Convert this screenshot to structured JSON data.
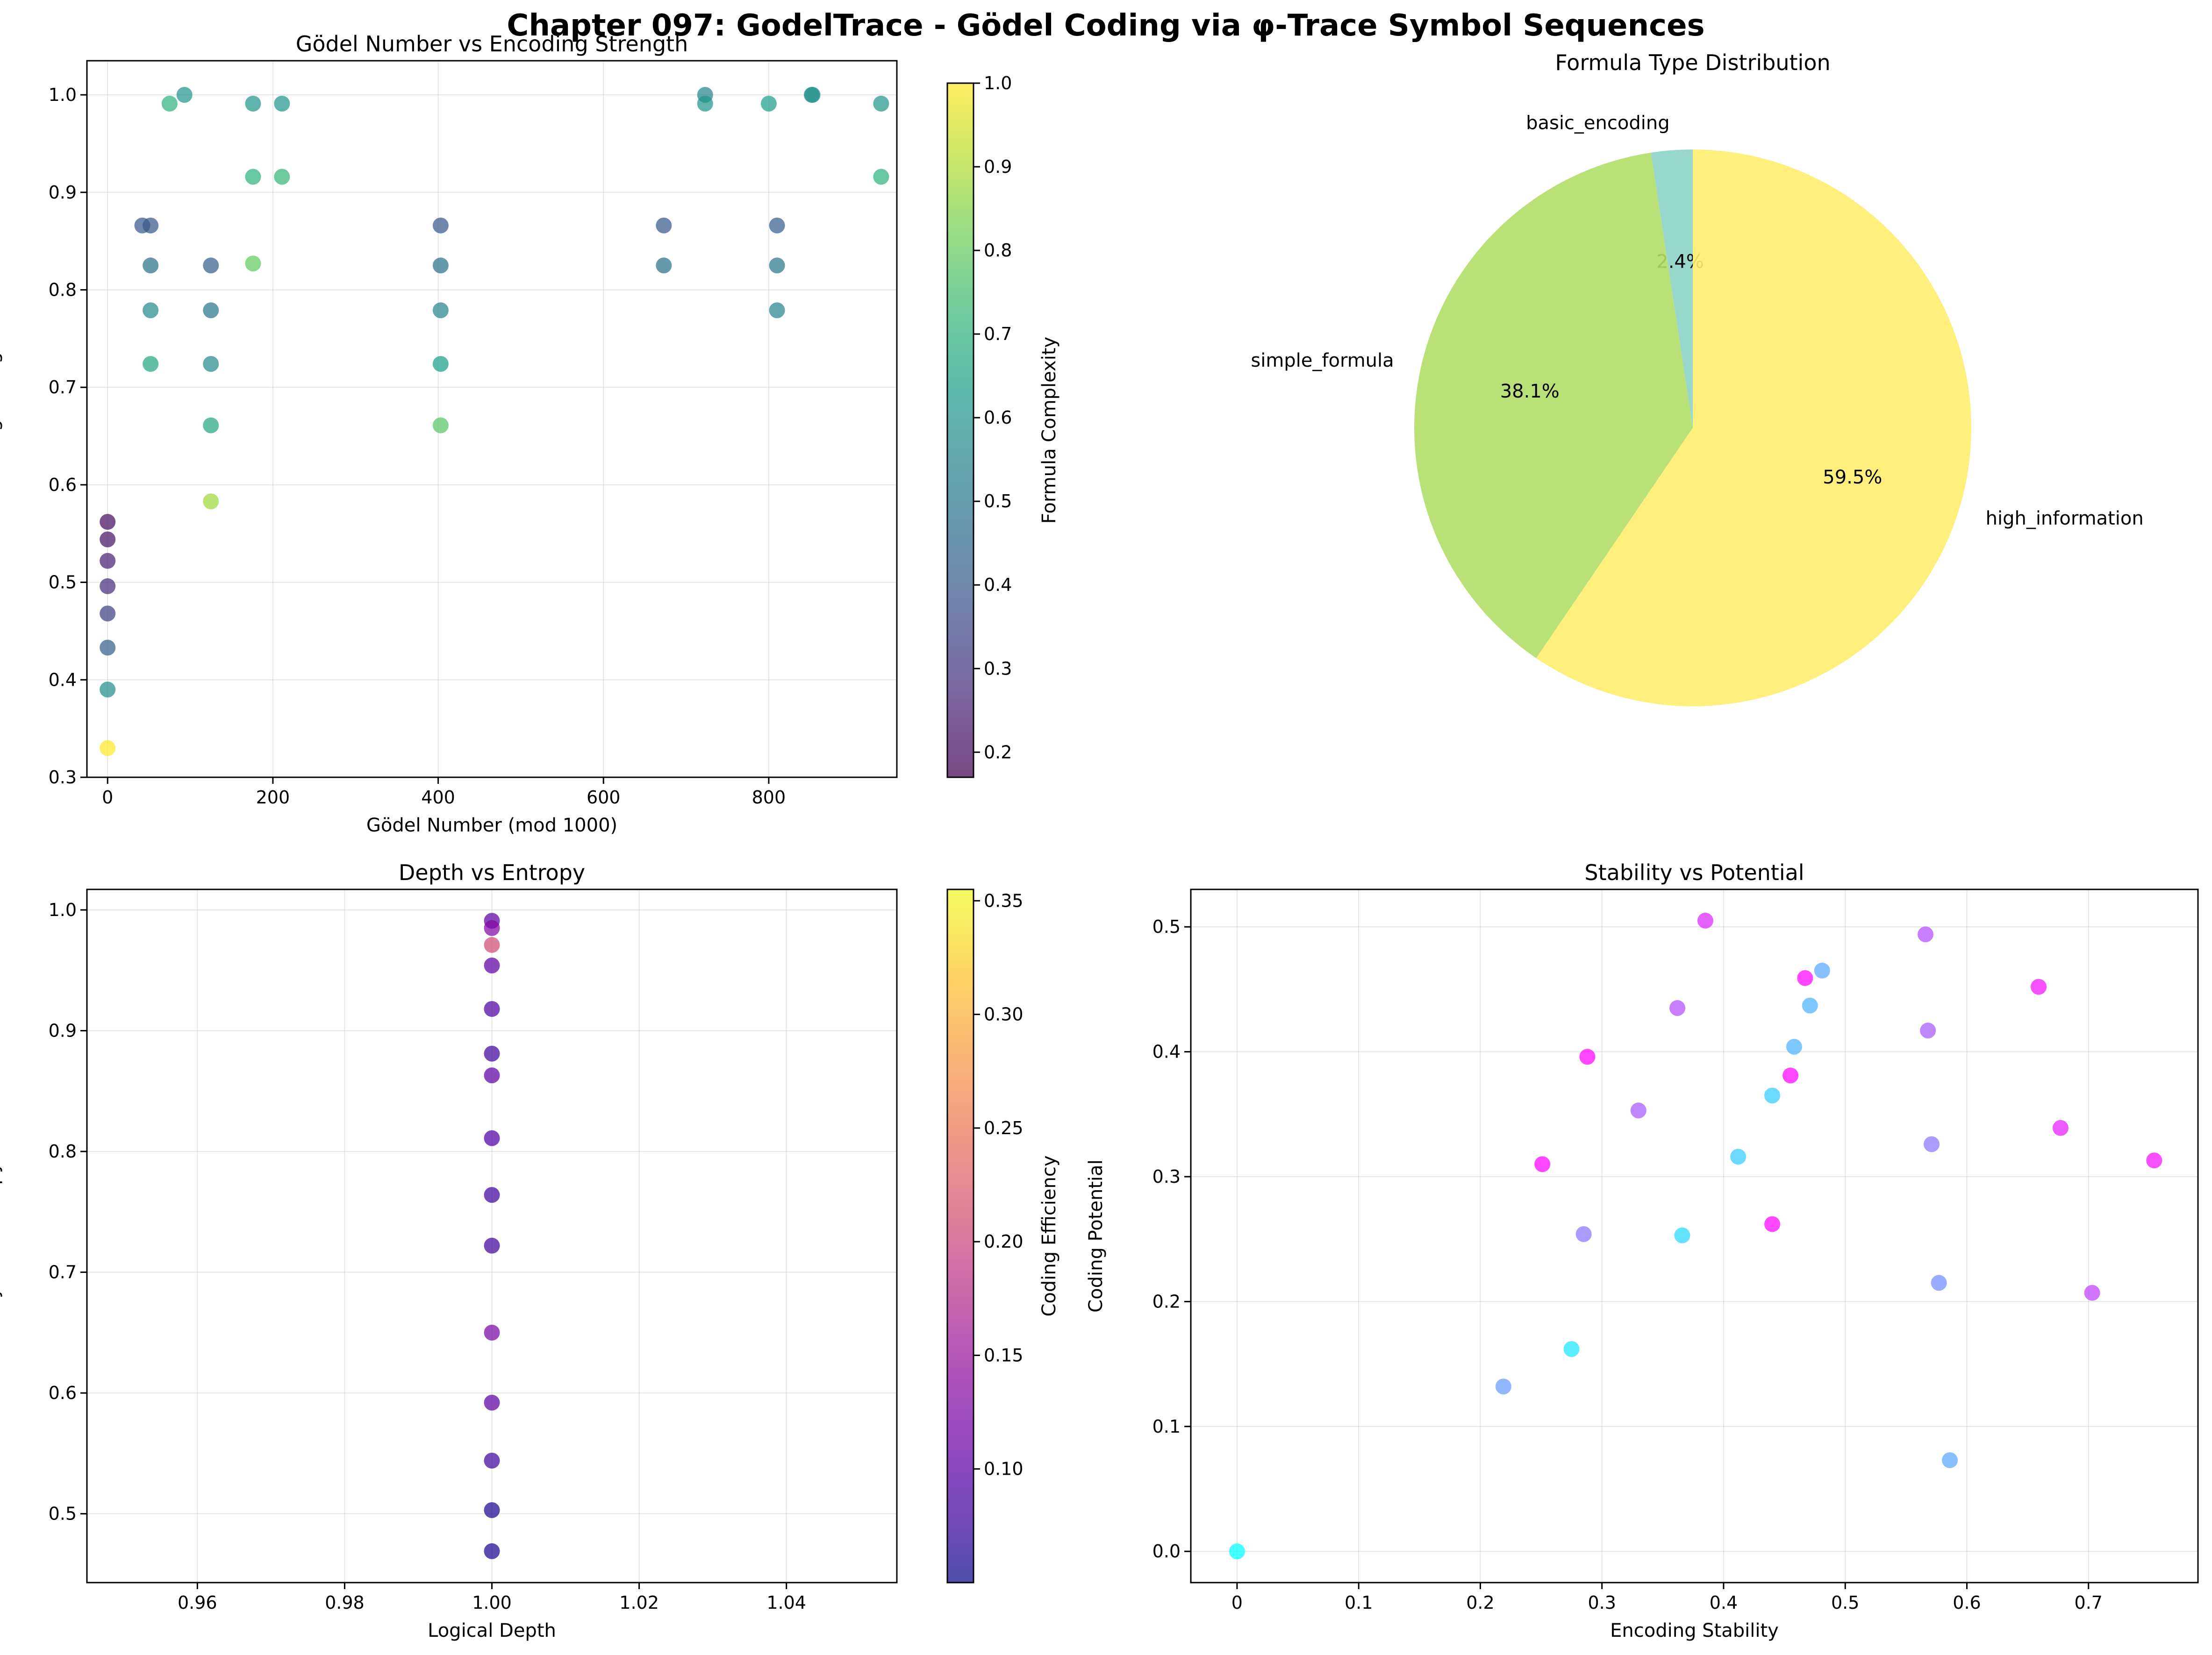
{
  "suptitle": "Chapter 097: GodelTrace - Gödel Coding via φ-Trace Symbol Sequences",
  "chart_data": [
    {
      "type": "scatter",
      "title": "Gödel Number vs Encoding Strength",
      "xlabel": "Gödel Number (mod 1000)",
      "ylabel": "Encoding Strength",
      "xlim": [
        -25,
        955
      ],
      "ylim": [
        0.3,
        1.035
      ],
      "xticks": [
        0,
        200,
        400,
        600,
        800
      ],
      "yticks": [
        0.3,
        0.4,
        0.5,
        0.6,
        0.7,
        0.8,
        0.9,
        1.0
      ],
      "colorbar": {
        "label": "Formula Complexity",
        "range": [
          0.17,
          1.0
        ],
        "ticks": [
          0.2,
          0.3,
          0.4,
          0.5,
          0.6,
          0.7,
          0.8,
          0.9,
          1.0
        ],
        "colormap": "viridis"
      },
      "grid": true,
      "points": [
        {
          "x": 0,
          "y": 0.562,
          "c": 0.2
        },
        {
          "x": 0,
          "y": 0.544,
          "c": 0.22
        },
        {
          "x": 0,
          "y": 0.522,
          "c": 0.25
        },
        {
          "x": 0,
          "y": 0.496,
          "c": 0.28
        },
        {
          "x": 0,
          "y": 0.468,
          "c": 0.33
        },
        {
          "x": 0,
          "y": 0.433,
          "c": 0.42
        },
        {
          "x": 0,
          "y": 0.39,
          "c": 0.58
        },
        {
          "x": 0,
          "y": 0.33,
          "c": 1.0
        },
        {
          "x": 42,
          "y": 0.866,
          "c": 0.4
        },
        {
          "x": 52,
          "y": 0.866,
          "c": 0.4
        },
        {
          "x": 52,
          "y": 0.825,
          "c": 0.48
        },
        {
          "x": 52,
          "y": 0.779,
          "c": 0.57
        },
        {
          "x": 52,
          "y": 0.724,
          "c": 0.66
        },
        {
          "x": 75,
          "y": 0.991,
          "c": 0.7
        },
        {
          "x": 93,
          "y": 1.0,
          "c": 0.6
        },
        {
          "x": 125,
          "y": 0.825,
          "c": 0.42
        },
        {
          "x": 125,
          "y": 0.779,
          "c": 0.5
        },
        {
          "x": 125,
          "y": 0.724,
          "c": 0.57
        },
        {
          "x": 125,
          "y": 0.661,
          "c": 0.66
        },
        {
          "x": 125,
          "y": 0.583,
          "c": 0.88
        },
        {
          "x": 176,
          "y": 0.991,
          "c": 0.6
        },
        {
          "x": 176,
          "y": 0.916,
          "c": 0.7
        },
        {
          "x": 176,
          "y": 0.827,
          "c": 0.8
        },
        {
          "x": 211,
          "y": 0.991,
          "c": 0.6
        },
        {
          "x": 211,
          "y": 0.916,
          "c": 0.72
        },
        {
          "x": 403,
          "y": 0.866,
          "c": 0.4
        },
        {
          "x": 403,
          "y": 0.825,
          "c": 0.48
        },
        {
          "x": 403,
          "y": 0.779,
          "c": 0.55
        },
        {
          "x": 403,
          "y": 0.724,
          "c": 0.63
        },
        {
          "x": 403,
          "y": 0.661,
          "c": 0.78
        },
        {
          "x": 673,
          "y": 0.866,
          "c": 0.4
        },
        {
          "x": 673,
          "y": 0.825,
          "c": 0.48
        },
        {
          "x": 723,
          "y": 1.0,
          "c": 0.55
        },
        {
          "x": 723,
          "y": 0.991,
          "c": 0.6
        },
        {
          "x": 800,
          "y": 0.991,
          "c": 0.63
        },
        {
          "x": 810,
          "y": 0.866,
          "c": 0.42
        },
        {
          "x": 810,
          "y": 0.825,
          "c": 0.5
        },
        {
          "x": 810,
          "y": 0.779,
          "c": 0.55
        },
        {
          "x": 852,
          "y": 1.0,
          "c": 0.55
        },
        {
          "x": 853,
          "y": 1.0,
          "c": 0.6
        },
        {
          "x": 936,
          "y": 0.991,
          "c": 0.6
        },
        {
          "x": 936,
          "y": 0.916,
          "c": 0.7
        }
      ]
    },
    {
      "type": "pie",
      "title": "Formula Type Distribution",
      "slices": [
        {
          "label": "basic_encoding",
          "value": 2.4,
          "pct": "2.4%",
          "color": "#8dd3c7"
        },
        {
          "label": "simple_formula",
          "value": 38.1,
          "pct": "38.1%",
          "color": "#b3de69"
        },
        {
          "label": "high_information",
          "value": 59.5,
          "pct": "59.5%",
          "color": "#ffed6f"
        }
      ]
    },
    {
      "type": "scatter",
      "title": "Depth vs Entropy",
      "xlabel": "Logical Depth",
      "ylabel": "Symbol Entropy",
      "xlim": [
        0.945,
        1.055
      ],
      "ylim": [
        0.443,
        1.017
      ],
      "xticks": [
        0.96,
        0.98,
        1.0,
        1.02,
        1.04
      ],
      "xtick_labels": [
        "0.96",
        "0.98",
        "1.00",
        "1.02",
        "1.04"
      ],
      "yticks": [
        0.5,
        0.6,
        0.7,
        0.8,
        0.9,
        1.0
      ],
      "colorbar": {
        "label": "Coding Efficiency",
        "range": [
          0.05,
          0.355
        ],
        "ticks": [
          0.1,
          0.15,
          0.2,
          0.25,
          0.3,
          0.35
        ],
        "tick_labels": [
          "0.10",
          "0.15",
          "0.20",
          "0.25",
          "0.30",
          "0.35"
        ],
        "colormap": "plasma"
      },
      "grid": true,
      "points": [
        {
          "x": 1.0,
          "y": 0.991,
          "c": 0.1
        },
        {
          "x": 1.0,
          "y": 0.985,
          "c": 0.13
        },
        {
          "x": 1.0,
          "y": 0.971,
          "c": 0.21
        },
        {
          "x": 1.0,
          "y": 0.954,
          "c": 0.1
        },
        {
          "x": 1.0,
          "y": 0.918,
          "c": 0.09
        },
        {
          "x": 1.0,
          "y": 0.881,
          "c": 0.08
        },
        {
          "x": 1.0,
          "y": 0.863,
          "c": 0.1
        },
        {
          "x": 1.0,
          "y": 0.811,
          "c": 0.09
        },
        {
          "x": 1.0,
          "y": 0.764,
          "c": 0.08
        },
        {
          "x": 1.0,
          "y": 0.722,
          "c": 0.08
        },
        {
          "x": 1.0,
          "y": 0.65,
          "c": 0.12
        },
        {
          "x": 1.0,
          "y": 0.592,
          "c": 0.1
        },
        {
          "x": 1.0,
          "y": 0.544,
          "c": 0.08
        },
        {
          "x": 1.0,
          "y": 0.503,
          "c": 0.06
        },
        {
          "x": 1.0,
          "y": 0.469,
          "c": 0.06
        }
      ]
    },
    {
      "type": "scatter",
      "title": "Stability vs Potential",
      "xlabel": "Encoding Stability",
      "ylabel": "Coding Potential",
      "xlim": [
        -0.038,
        0.79
      ],
      "ylim": [
        -0.025,
        0.53
      ],
      "xticks": [
        0.0,
        0.1,
        0.2,
        0.3,
        0.4,
        0.5,
        0.6,
        0.7
      ],
      "yticks": [
        0.0,
        0.1,
        0.2,
        0.3,
        0.4,
        0.5
      ],
      "colormap": "cool",
      "grid": true,
      "points": [
        {
          "x": 0.0,
          "y": 0.0,
          "c": 0.0
        },
        {
          "x": 0.219,
          "y": 0.132,
          "c": 0.4
        },
        {
          "x": 0.275,
          "y": 0.162,
          "c": 0.1
        },
        {
          "x": 0.251,
          "y": 0.31,
          "c": 1.0
        },
        {
          "x": 0.285,
          "y": 0.254,
          "c": 0.55
        },
        {
          "x": 0.288,
          "y": 0.396,
          "c": 1.0
        },
        {
          "x": 0.33,
          "y": 0.353,
          "c": 0.65
        },
        {
          "x": 0.362,
          "y": 0.435,
          "c": 0.7
        },
        {
          "x": 0.366,
          "y": 0.253,
          "c": 0.15
        },
        {
          "x": 0.385,
          "y": 0.505,
          "c": 0.85
        },
        {
          "x": 0.412,
          "y": 0.316,
          "c": 0.2
        },
        {
          "x": 0.44,
          "y": 0.365,
          "c": 0.2
        },
        {
          "x": 0.44,
          "y": 0.262,
          "c": 1.0
        },
        {
          "x": 0.455,
          "y": 0.381,
          "c": 1.0
        },
        {
          "x": 0.458,
          "y": 0.404,
          "c": 0.3
        },
        {
          "x": 0.467,
          "y": 0.459,
          "c": 1.0
        },
        {
          "x": 0.471,
          "y": 0.437,
          "c": 0.3
        },
        {
          "x": 0.481,
          "y": 0.465,
          "c": 0.35
        },
        {
          "x": 0.566,
          "y": 0.494,
          "c": 0.7
        },
        {
          "x": 0.568,
          "y": 0.417,
          "c": 0.65
        },
        {
          "x": 0.571,
          "y": 0.326,
          "c": 0.55
        },
        {
          "x": 0.577,
          "y": 0.215,
          "c": 0.45
        },
        {
          "x": 0.586,
          "y": 0.073,
          "c": 0.35
        },
        {
          "x": 0.659,
          "y": 0.452,
          "c": 0.95
        },
        {
          "x": 0.677,
          "y": 0.339,
          "c": 0.9
        },
        {
          "x": 0.703,
          "y": 0.207,
          "c": 0.75
        },
        {
          "x": 0.754,
          "y": 0.313,
          "c": 0.95
        }
      ]
    }
  ]
}
